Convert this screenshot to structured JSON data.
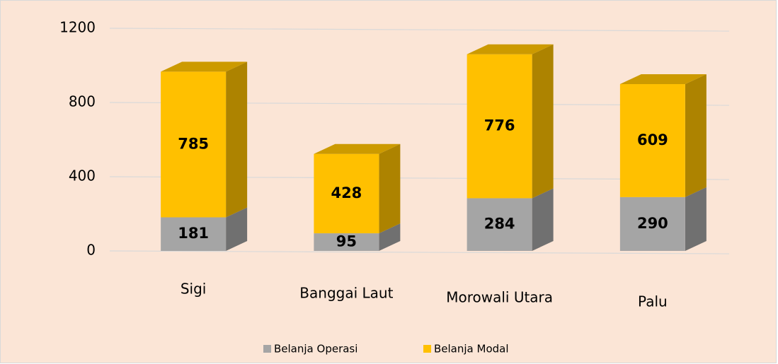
{
  "chart_data": {
    "type": "bar",
    "stacked": true,
    "categories": [
      "Sigi",
      "Banggai Laut",
      "Morowali Utara",
      "Palu"
    ],
    "series": [
      {
        "name": "Belanja Operasi",
        "color": "#a5a5a5",
        "values": [
          181,
          95,
          284,
          290
        ]
      },
      {
        "name": "Belanja Modal",
        "color": "#ffc000",
        "values": [
          785,
          428,
          776,
          609
        ]
      }
    ],
    "ylim": [
      0,
      1200
    ],
    "yticks": [
      0,
      400,
      800,
      1200
    ],
    "grid": true,
    "legend": "bottom"
  }
}
